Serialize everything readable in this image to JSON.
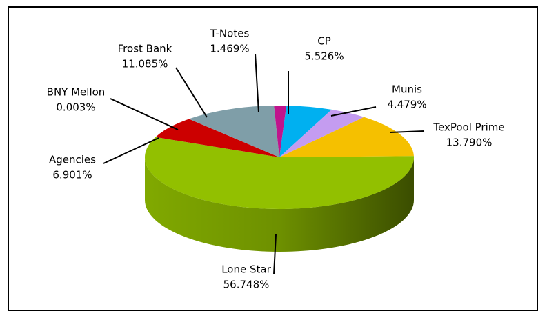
{
  "chart_data": {
    "type": "pie",
    "categories": [
      "CP",
      "Munis",
      "TexPool Prime",
      "Lone Star",
      "Agencies",
      "BNY Mellon",
      "Frost Bank",
      "T-Notes"
    ],
    "values": [
      5.526,
      4.479,
      13.79,
      56.748,
      6.901,
      0.003,
      11.085,
      1.469
    ],
    "value_labels": [
      "5.526%",
      "4.479%",
      "13.790%",
      "56.748%",
      "6.901%",
      "0.003%",
      "11.085%",
      "1.469%"
    ],
    "colors": [
      "#00b0f0",
      "#c49cf0",
      "#f5c000",
      "#92c000",
      "#cc0000",
      "#4f81bd",
      "#7f9ea8",
      "#c0148c"
    ]
  }
}
